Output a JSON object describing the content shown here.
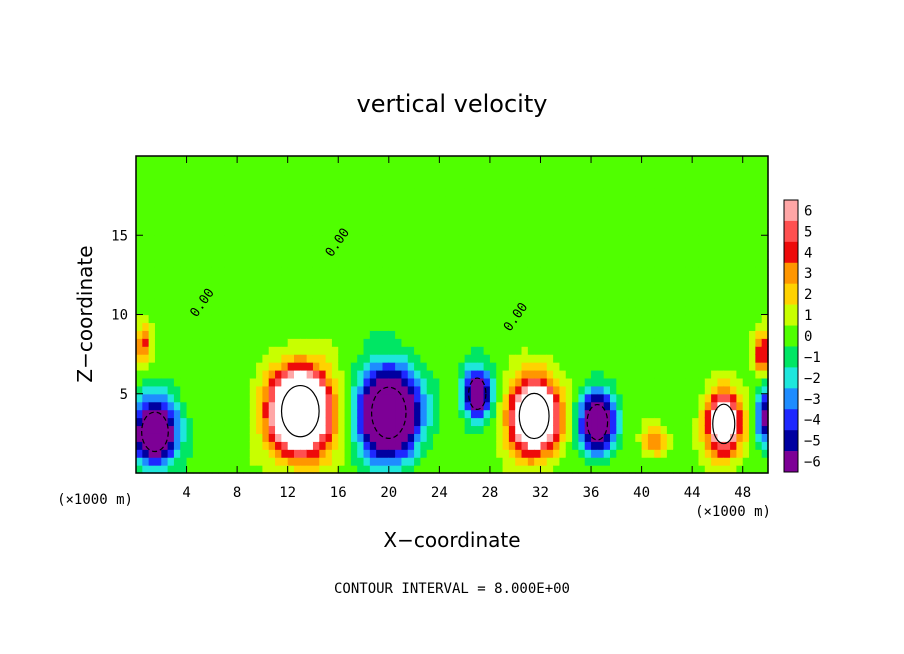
{
  "chart_data": {
    "type": "heatmap",
    "title": "vertical velocity",
    "xlabel": "X−coordinate",
    "ylabel": "Z−coordinate",
    "x_unit": "(×1000 m)",
    "y_unit": "(×1000 m)",
    "xlim": [
      0,
      50
    ],
    "ylim": [
      0,
      20
    ],
    "x_ticks": [
      4,
      8,
      12,
      16,
      20,
      24,
      28,
      32,
      36,
      40,
      44,
      48
    ],
    "y_ticks": [
      5,
      10,
      15
    ],
    "colorbar": {
      "levels": [
        6,
        5,
        4,
        3,
        2,
        1,
        0,
        -1,
        -2,
        -3,
        -4,
        -5,
        -6
      ],
      "labels": [
        "6",
        "5",
        "4",
        "3",
        "2",
        "1",
        "0",
        "−1",
        "−2",
        "−3",
        "−4",
        "−5",
        "−6"
      ],
      "colors": [
        "#ffa6a6",
        "#ff5050",
        "#ee0a0a",
        "#ff9600",
        "#ffd200",
        "#c8ff00",
        "#50ff00",
        "#00e664",
        "#1ee6dc",
        "#1e8cff",
        "#1e28ff",
        "#0000a0",
        "#7d0096"
      ]
    },
    "features": [
      {
        "type": "updraft",
        "x": 13,
        "z": 3.9,
        "sx": 2.4,
        "sz": 2.6,
        "peak": 14
      },
      {
        "type": "updraft",
        "x": 31.5,
        "z": 3.6,
        "sx": 1.9,
        "sz": 2.3,
        "peak": 12
      },
      {
        "type": "updraft",
        "x": 46.5,
        "z": 3.1,
        "sx": 1.4,
        "sz": 2.0,
        "peak": 9
      },
      {
        "type": "updraft",
        "x": 49.5,
        "z": 7.6,
        "sx": 0.6,
        "sz": 1.4,
        "peak": 5
      },
      {
        "type": "updraft",
        "x": 0.6,
        "z": 8.2,
        "sx": 0.6,
        "sz": 1.2,
        "peak": 4
      },
      {
        "type": "updraft",
        "x": 41,
        "z": 2.0,
        "sx": 1.0,
        "sz": 1.0,
        "peak": 3
      },
      {
        "type": "downdraft",
        "x": 20,
        "z": 3.8,
        "sx": 2.2,
        "sz": 2.6,
        "peak": -13
      },
      {
        "type": "downdraft",
        "x": 1.5,
        "z": 2.6,
        "sx": 1.7,
        "sz": 2.0,
        "peak": -10
      },
      {
        "type": "downdraft",
        "x": 27,
        "z": 5.0,
        "sx": 1.1,
        "sz": 1.6,
        "peak": -8
      },
      {
        "type": "downdraft",
        "x": 36.5,
        "z": 3.2,
        "sx": 1.3,
        "sz": 1.8,
        "peak": -10
      },
      {
        "type": "downdraft",
        "x": 49.7,
        "z": 3.6,
        "sx": 0.6,
        "sz": 1.8,
        "peak": -6
      }
    ],
    "contour_labels": [
      "0.00",
      "0.00",
      "0.00"
    ],
    "contour_interval_text": "CONTOUR INTERVAL = 8.000E+00"
  }
}
